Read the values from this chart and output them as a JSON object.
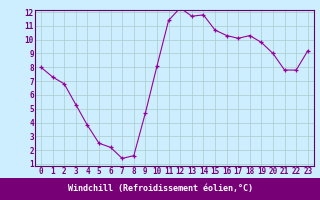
{
  "x": [
    0,
    1,
    2,
    3,
    4,
    5,
    6,
    7,
    8,
    9,
    10,
    11,
    12,
    13,
    14,
    15,
    16,
    17,
    18,
    19,
    20,
    21,
    22,
    23
  ],
  "y": [
    8.0,
    7.3,
    6.8,
    5.3,
    3.8,
    2.5,
    2.2,
    1.4,
    1.6,
    4.7,
    8.1,
    11.4,
    12.3,
    11.7,
    11.8,
    10.7,
    10.3,
    10.1,
    10.3,
    9.8,
    9.0,
    7.8,
    7.8,
    9.2
  ],
  "line_color": "#990099",
  "marker": "+",
  "marker_size": 3,
  "bg_color": "#cceeff",
  "grid_color": "#aacccc",
  "spine_color": "#660066",
  "xlabel": "Windchill (Refroidissement éolien,°C)",
  "xlabel_color": "#ffffff",
  "xlabel_bg": "#770077",
  "ylim": [
    1,
    12
  ],
  "xlim": [
    -0.5,
    23.5
  ],
  "yticks": [
    1,
    2,
    3,
    4,
    5,
    6,
    7,
    8,
    9,
    10,
    11,
    12
  ],
  "xticks": [
    0,
    1,
    2,
    3,
    4,
    5,
    6,
    7,
    8,
    9,
    10,
    11,
    12,
    13,
    14,
    15,
    16,
    17,
    18,
    19,
    20,
    21,
    22,
    23
  ],
  "tick_label_color": "#770077",
  "tick_label_fontsize": 5.5,
  "ytick_label_fontsize": 5.5
}
